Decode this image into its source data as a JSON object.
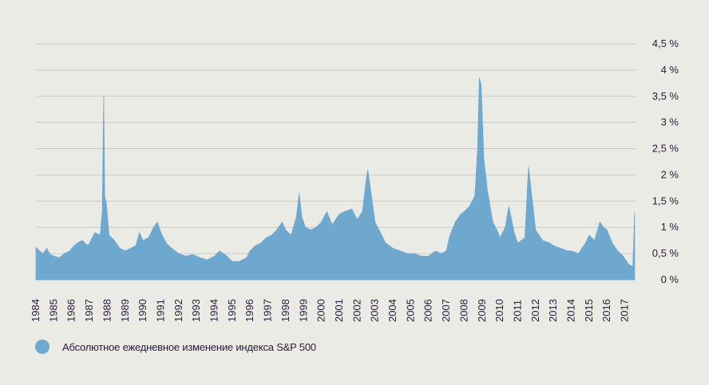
{
  "chart_data": {
    "type": "area",
    "x_labels": [
      "1984",
      "1985",
      "1986",
      "1987",
      "1988",
      "1989",
      "1990",
      "1991",
      "1992",
      "1993",
      "1994",
      "1995",
      "1996",
      "1997",
      "1998",
      "1999",
      "2000",
      "2001",
      "2002",
      "2003",
      "2004",
      "2005",
      "2006",
      "2007",
      "2008",
      "2009",
      "2010",
      "2011",
      "2012",
      "2013",
      "2014",
      "2015",
      "2016",
      "2017"
    ],
    "y_ticks": [
      "0 %",
      "0,5 %",
      "1 %",
      "1,5 %",
      "2 %",
      "2,5 %",
      "3 %",
      "3,5 %",
      "4 %",
      "4,5 %"
    ],
    "ylim": [
      0,
      4.5
    ],
    "xlim": [
      1984,
      2017.6
    ],
    "grid": true,
    "legend_position": "bottom-left",
    "series": [
      {
        "name": "Абсолютное ежедневное изменение индекса S&P 500",
        "color": "#6fa8cf",
        "points": [
          [
            1984.0,
            0.62
          ],
          [
            1984.2,
            0.55
          ],
          [
            1984.4,
            0.5
          ],
          [
            1984.6,
            0.6
          ],
          [
            1984.8,
            0.48
          ],
          [
            1985.0,
            0.45
          ],
          [
            1985.3,
            0.42
          ],
          [
            1985.6,
            0.5
          ],
          [
            1985.9,
            0.55
          ],
          [
            1986.0,
            0.6
          ],
          [
            1986.3,
            0.7
          ],
          [
            1986.6,
            0.75
          ],
          [
            1986.9,
            0.65
          ],
          [
            1987.0,
            0.7
          ],
          [
            1987.3,
            0.9
          ],
          [
            1987.6,
            0.85
          ],
          [
            1987.72,
            1.3
          ],
          [
            1987.8,
            3.5
          ],
          [
            1987.85,
            1.6
          ],
          [
            1987.95,
            1.45
          ],
          [
            1988.1,
            0.85
          ],
          [
            1988.4,
            0.75
          ],
          [
            1988.7,
            0.6
          ],
          [
            1989.0,
            0.55
          ],
          [
            1989.3,
            0.6
          ],
          [
            1989.6,
            0.65
          ],
          [
            1989.8,
            0.9
          ],
          [
            1990.0,
            0.75
          ],
          [
            1990.3,
            0.8
          ],
          [
            1990.6,
            1.0
          ],
          [
            1990.8,
            1.1
          ],
          [
            1991.0,
            0.9
          ],
          [
            1991.3,
            0.7
          ],
          [
            1991.6,
            0.6
          ],
          [
            1992.0,
            0.5
          ],
          [
            1992.4,
            0.45
          ],
          [
            1992.8,
            0.48
          ],
          [
            1993.2,
            0.42
          ],
          [
            1993.6,
            0.38
          ],
          [
            1994.0,
            0.45
          ],
          [
            1994.3,
            0.55
          ],
          [
            1994.7,
            0.45
          ],
          [
            1995.0,
            0.35
          ],
          [
            1995.4,
            0.35
          ],
          [
            1995.8,
            0.42
          ],
          [
            1996.0,
            0.55
          ],
          [
            1996.3,
            0.65
          ],
          [
            1996.6,
            0.7
          ],
          [
            1996.9,
            0.8
          ],
          [
            1997.2,
            0.85
          ],
          [
            1997.5,
            0.95
          ],
          [
            1997.8,
            1.1
          ],
          [
            1998.0,
            0.95
          ],
          [
            1998.3,
            0.85
          ],
          [
            1998.6,
            1.2
          ],
          [
            1998.75,
            1.65
          ],
          [
            1998.9,
            1.2
          ],
          [
            1999.1,
            1.0
          ],
          [
            1999.4,
            0.95
          ],
          [
            1999.7,
            1.0
          ],
          [
            2000.0,
            1.1
          ],
          [
            2000.3,
            1.3
          ],
          [
            2000.6,
            1.05
          ],
          [
            2000.9,
            1.2
          ],
          [
            2001.0,
            1.25
          ],
          [
            2001.3,
            1.3
          ],
          [
            2001.7,
            1.35
          ],
          [
            2002.0,
            1.15
          ],
          [
            2002.3,
            1.3
          ],
          [
            2002.5,
            1.9
          ],
          [
            2002.6,
            2.1
          ],
          [
            2002.8,
            1.6
          ],
          [
            2003.0,
            1.1
          ],
          [
            2003.3,
            0.9
          ],
          [
            2003.6,
            0.7
          ],
          [
            2004.0,
            0.6
          ],
          [
            2004.4,
            0.55
          ],
          [
            2004.8,
            0.5
          ],
          [
            2005.2,
            0.5
          ],
          [
            2005.6,
            0.45
          ],
          [
            2006.0,
            0.45
          ],
          [
            2006.4,
            0.55
          ],
          [
            2006.7,
            0.5
          ],
          [
            2007.0,
            0.55
          ],
          [
            2007.2,
            0.85
          ],
          [
            2007.5,
            1.1
          ],
          [
            2007.8,
            1.25
          ],
          [
            2008.0,
            1.3
          ],
          [
            2008.3,
            1.4
          ],
          [
            2008.6,
            1.6
          ],
          [
            2008.75,
            2.5
          ],
          [
            2008.85,
            3.85
          ],
          [
            2008.95,
            3.7
          ],
          [
            2009.1,
            2.3
          ],
          [
            2009.3,
            1.7
          ],
          [
            2009.6,
            1.1
          ],
          [
            2009.9,
            0.9
          ],
          [
            2010.0,
            0.8
          ],
          [
            2010.3,
            1.0
          ],
          [
            2010.5,
            1.4
          ],
          [
            2010.8,
            0.9
          ],
          [
            2011.0,
            0.7
          ],
          [
            2011.4,
            0.8
          ],
          [
            2011.6,
            2.15
          ],
          [
            2011.8,
            1.55
          ],
          [
            2012.0,
            0.95
          ],
          [
            2012.4,
            0.75
          ],
          [
            2012.8,
            0.7
          ],
          [
            2013.0,
            0.65
          ],
          [
            2013.4,
            0.6
          ],
          [
            2013.8,
            0.55
          ],
          [
            2014.0,
            0.55
          ],
          [
            2014.4,
            0.5
          ],
          [
            2014.8,
            0.7
          ],
          [
            2015.0,
            0.85
          ],
          [
            2015.3,
            0.75
          ],
          [
            2015.6,
            1.1
          ],
          [
            2015.8,
            1.0
          ],
          [
            2016.0,
            0.95
          ],
          [
            2016.3,
            0.7
          ],
          [
            2016.6,
            0.55
          ],
          [
            2016.9,
            0.45
          ],
          [
            2017.2,
            0.3
          ],
          [
            2017.45,
            0.25
          ],
          [
            2017.55,
            1.28
          ]
        ]
      }
    ]
  }
}
